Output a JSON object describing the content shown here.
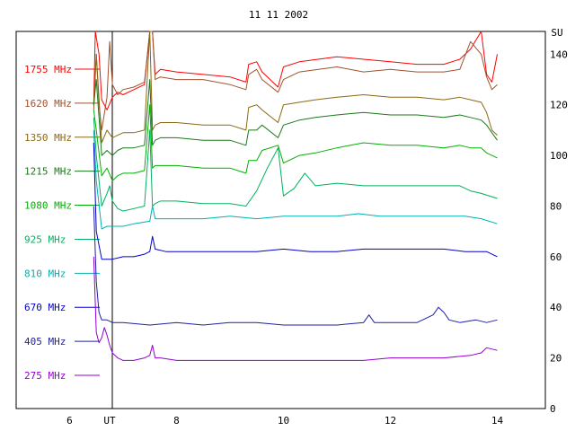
{
  "chart_data": {
    "type": "line",
    "title": "11 11 2002",
    "xlabel": "UT",
    "ylabel": "SU",
    "x_ticks": [
      6,
      8,
      10,
      12,
      14
    ],
    "y_ticks": [
      0,
      20,
      40,
      60,
      80,
      100,
      120,
      140
    ],
    "xlim": [
      5.0,
      14.9
    ],
    "ylim": [
      0,
      149
    ],
    "grid": false,
    "legend_position": "left",
    "series": [
      {
        "name": "1755 MHz",
        "color": "#ff0000",
        "x": [
          6.45,
          6.48,
          6.55,
          6.6,
          6.7,
          6.8,
          6.9,
          7.0,
          7.2,
          7.4,
          7.5,
          7.55,
          7.6,
          7.7,
          8.0,
          8.5,
          9.0,
          9.3,
          9.35,
          9.5,
          9.6,
          9.9,
          10.0,
          10.3,
          11.0,
          11.5,
          12.0,
          12.5,
          13.0,
          13.3,
          13.5,
          13.7,
          13.8,
          13.9,
          14.0
        ],
        "y": [
          120,
          155,
          140,
          122,
          118,
          123,
          125,
          124,
          126,
          128,
          150,
          165,
          132,
          134,
          133,
          132,
          131,
          129,
          136,
          137,
          133,
          127,
          135,
          137,
          139,
          138,
          137,
          136,
          136,
          138,
          142,
          150,
          132,
          129,
          140
        ]
      },
      {
        "name": "1620 MHz",
        "color": "#a0522d",
        "x": [
          6.45,
          6.5,
          6.55,
          6.6,
          6.7,
          6.75,
          6.8,
          6.9,
          7.0,
          7.2,
          7.4,
          7.5,
          7.55,
          7.6,
          7.7,
          8.0,
          8.5,
          9.0,
          9.3,
          9.35,
          9.5,
          9.6,
          9.9,
          10.0,
          10.3,
          11.0,
          11.5,
          12.0,
          12.5,
          13.0,
          13.3,
          13.5,
          13.7,
          13.8,
          13.9,
          14.0
        ],
        "y": [
          118,
          140,
          120,
          110,
          123,
          145,
          128,
          124,
          126,
          127,
          129,
          150,
          165,
          130,
          131,
          130,
          130,
          128,
          126,
          132,
          134,
          130,
          125,
          130,
          133,
          135,
          133,
          134,
          133,
          133,
          134,
          145,
          140,
          131,
          126,
          128
        ]
      },
      {
        "name": "1350 MHz",
        "color": "#8b6914",
        "x": [
          6.45,
          6.5,
          6.6,
          6.7,
          6.8,
          6.9,
          7.0,
          7.2,
          7.4,
          7.5,
          7.55,
          7.6,
          7.7,
          8.0,
          8.5,
          9.0,
          9.3,
          9.35,
          9.5,
          9.6,
          9.9,
          10.0,
          10.3,
          10.6,
          11.0,
          11.5,
          12.0,
          12.5,
          13.0,
          13.3,
          13.5,
          13.7,
          13.8,
          13.9,
          14.0
        ],
        "y": [
          120,
          140,
          105,
          110,
          107,
          108,
          109,
          109,
          110,
          150,
          110,
          112,
          113,
          113,
          112,
          112,
          110,
          119,
          120,
          118,
          113,
          120,
          121,
          122,
          123,
          124,
          123,
          123,
          122,
          123,
          122,
          121,
          117,
          110,
          108
        ]
      },
      {
        "name": "1215 MHz",
        "color": "#1a7a1a",
        "x": [
          6.45,
          6.5,
          6.6,
          6.7,
          6.8,
          6.9,
          7.0,
          7.2,
          7.4,
          7.5,
          7.55,
          7.6,
          7.7,
          8.0,
          8.5,
          9.0,
          9.3,
          9.35,
          9.5,
          9.6,
          9.9,
          10.0,
          10.3,
          10.6,
          11.0,
          11.5,
          12.0,
          12.5,
          13.0,
          13.3,
          13.5,
          13.7,
          13.8,
          13.9,
          14.0
        ],
        "y": [
          120,
          130,
          100,
          102,
          100,
          102,
          103,
          103,
          104,
          130,
          104,
          106,
          107,
          107,
          106,
          106,
          104,
          110,
          110,
          112,
          107,
          112,
          114,
          115,
          116,
          117,
          116,
          116,
          115,
          116,
          115,
          114,
          112,
          109,
          106
        ]
      },
      {
        "name": "1080 MHz",
        "color": "#00b000",
        "x": [
          6.45,
          6.5,
          6.6,
          6.7,
          6.8,
          6.9,
          7.0,
          7.2,
          7.4,
          7.5,
          7.55,
          7.6,
          7.7,
          8.0,
          8.5,
          9.0,
          9.3,
          9.35,
          9.5,
          9.6,
          9.9,
          10.0,
          10.3,
          10.6,
          11.0,
          11.5,
          12.0,
          12.5,
          13.0,
          13.3,
          13.5,
          13.7,
          13.8,
          13.9,
          14.0
        ],
        "y": [
          118,
          110,
          92,
          95,
          90,
          92,
          93,
          93,
          94,
          120,
          95,
          96,
          96,
          96,
          95,
          95,
          93,
          98,
          98,
          102,
          104,
          97,
          100,
          101,
          103,
          105,
          104,
          104,
          103,
          104,
          103,
          103,
          101,
          100,
          99
        ]
      },
      {
        "name": "925 MHz",
        "color": "#00b060",
        "x": [
          6.45,
          6.5,
          6.6,
          6.7,
          6.75,
          6.8,
          6.9,
          7.0,
          7.2,
          7.4,
          7.5,
          7.55,
          7.6,
          7.7,
          8.0,
          8.5,
          9.0,
          9.3,
          9.5,
          9.7,
          9.9,
          10.0,
          10.2,
          10.4,
          10.6,
          11.0,
          11.5,
          12.0,
          12.5,
          13.0,
          13.3,
          13.5,
          13.7,
          14.0
        ],
        "y": [
          115,
          100,
          80,
          85,
          88,
          82,
          79,
          78,
          79,
          80,
          110,
          80,
          81,
          82,
          82,
          81,
          81,
          80,
          86,
          95,
          103,
          84,
          87,
          93,
          88,
          89,
          88,
          88,
          88,
          88,
          88,
          86,
          85,
          83
        ]
      },
      {
        "name": "810 MHz",
        "color": "#00b0b0",
        "x": [
          6.45,
          6.5,
          6.6,
          6.7,
          6.8,
          7.0,
          7.2,
          7.5,
          7.55,
          7.6,
          7.8,
          8.0,
          8.5,
          9.0,
          9.5,
          10.0,
          10.5,
          11.0,
          11.4,
          11.8,
          12.2,
          12.6,
          13.0,
          13.4,
          13.7,
          14.0
        ],
        "y": [
          110,
          90,
          71,
          72,
          72,
          72,
          73,
          74,
          80,
          75,
          75,
          75,
          75,
          76,
          75,
          76,
          76,
          76,
          77,
          76,
          76,
          76,
          76,
          76,
          75,
          73
        ]
      },
      {
        "name": "670 MHz",
        "color": "#0000c8",
        "x": [
          6.45,
          6.5,
          6.6,
          6.8,
          7.0,
          7.2,
          7.4,
          7.5,
          7.55,
          7.6,
          7.8,
          8.0,
          8.5,
          9.0,
          9.5,
          10.0,
          10.5,
          11.0,
          11.5,
          12.0,
          12.5,
          13.0,
          13.4,
          13.8,
          14.0
        ],
        "y": [
          105,
          70,
          59,
          59,
          60,
          60,
          61,
          62,
          68,
          63,
          62,
          62,
          62,
          62,
          62,
          63,
          62,
          62,
          63,
          63,
          63,
          63,
          62,
          62,
          60
        ]
      },
      {
        "name": "405 MHz",
        "color": "#2020a0",
        "x": [
          6.45,
          6.5,
          6.55,
          6.6,
          6.7,
          6.8,
          7.0,
          7.5,
          8.0,
          8.5,
          9.0,
          9.5,
          10.0,
          10.5,
          11.0,
          11.5,
          11.6,
          11.7,
          12.0,
          12.5,
          12.8,
          12.9,
          13.0,
          13.1,
          13.3,
          13.6,
          13.8,
          14.0
        ],
        "y": [
          80,
          50,
          38,
          35,
          35,
          34,
          34,
          33,
          34,
          33,
          34,
          34,
          33,
          33,
          33,
          34,
          37,
          34,
          34,
          34,
          37,
          40,
          38,
          35,
          34,
          35,
          34,
          35
        ]
      },
      {
        "name": "275 MHz",
        "color": "#9400d3",
        "x": [
          6.45,
          6.5,
          6.55,
          6.6,
          6.65,
          6.7,
          6.75,
          6.8,
          6.9,
          7.0,
          7.2,
          7.4,
          7.5,
          7.55,
          7.6,
          7.7,
          8.0,
          8.5,
          9.0,
          9.5,
          10.0,
          10.5,
          11.0,
          11.5,
          12.0,
          12.5,
          13.0,
          13.5,
          13.7,
          13.8,
          14.0
        ],
        "y": [
          60,
          30,
          26,
          28,
          32,
          29,
          25,
          22,
          20,
          19,
          19,
          20,
          21,
          25,
          20,
          20,
          19,
          19,
          19,
          19,
          19,
          19,
          19,
          19,
          20,
          20,
          20,
          21,
          22,
          24,
          23
        ]
      }
    ]
  }
}
